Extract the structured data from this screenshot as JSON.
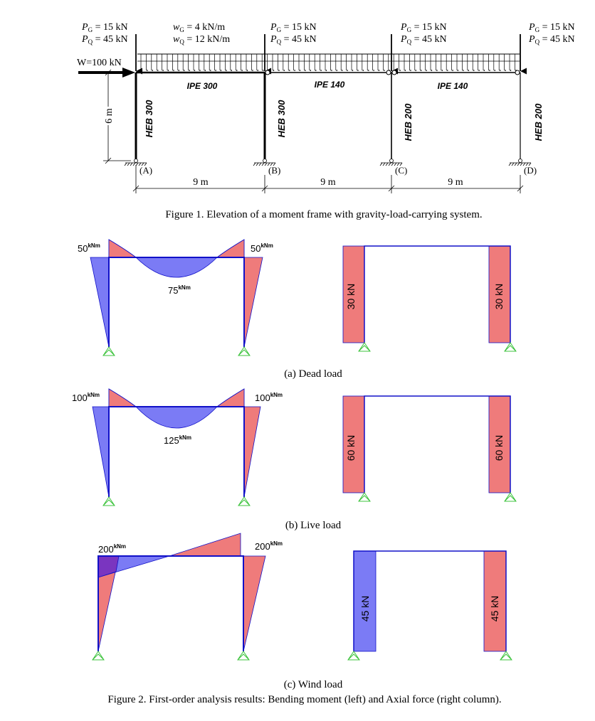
{
  "figure1": {
    "caption": "Figure 1. Elevation of a moment frame with gravity-load-carrying system.",
    "point_loads": [
      {
        "pg": "P",
        "pg_sub": "G",
        "pg_val": " = 15 kN",
        "pq": "P",
        "pq_sub": "Q",
        "pq_val": " = 45 kN"
      },
      {
        "pg": "P",
        "pg_sub": "G",
        "pg_val": " = 15 kN",
        "pq": "P",
        "pq_sub": "Q",
        "pq_val": " = 45 kN"
      },
      {
        "pg": "P",
        "pg_sub": "G",
        "pg_val": " = 15 kN",
        "pq": "P",
        "pq_sub": "Q",
        "pq_val": " = 45 kN"
      },
      {
        "pg": "P",
        "pg_sub": "G",
        "pg_val": " = 15 kN",
        "pq": "P",
        "pq_sub": "Q",
        "pq_val": " = 45 kN"
      }
    ],
    "distributed": {
      "wg": "w",
      "wg_sub": "G",
      "wg_val": " = 4 kN/m",
      "wq": "w",
      "wq_sub": "Q",
      "wq_val": " = 12 kN/m"
    },
    "wind_label": "W=100 kN",
    "height_label": "6 m",
    "beams": [
      "IPE 300",
      "IPE 140",
      "IPE 140"
    ],
    "columns": [
      "HEB 300",
      "HEB 300",
      "HEB 200",
      "HEB 200"
    ],
    "supports": [
      "(A)",
      "(B)",
      "(C)",
      "(D)"
    ],
    "spans": [
      "9 m",
      "9 m",
      "9 m"
    ]
  },
  "figure2": {
    "caption": "Figure 2. First-order analysis results: Bending moment (left) and Axial force (right column).",
    "unit": "kNm",
    "colors": {
      "positive": "#ef7b7b",
      "negative": "#7b7bf5",
      "frame": "#1010c8",
      "overlap": "#7a35c0",
      "support": "#3cc33c"
    },
    "cases": [
      {
        "caption": "(a) Dead load",
        "m_left": "50",
        "m_right": "50",
        "m_mid": "75",
        "n_left": "30 kN",
        "n_right": "30 kN"
      },
      {
        "caption": "(b) Live load",
        "m_left": "100",
        "m_right": "100",
        "m_mid": "125",
        "n_left": "60 kN",
        "n_right": "60 kN"
      },
      {
        "caption": "(c) Wind load",
        "m_left": "200",
        "m_right": "200",
        "n_left": "45 kN",
        "n_right": "45 kN"
      }
    ]
  }
}
